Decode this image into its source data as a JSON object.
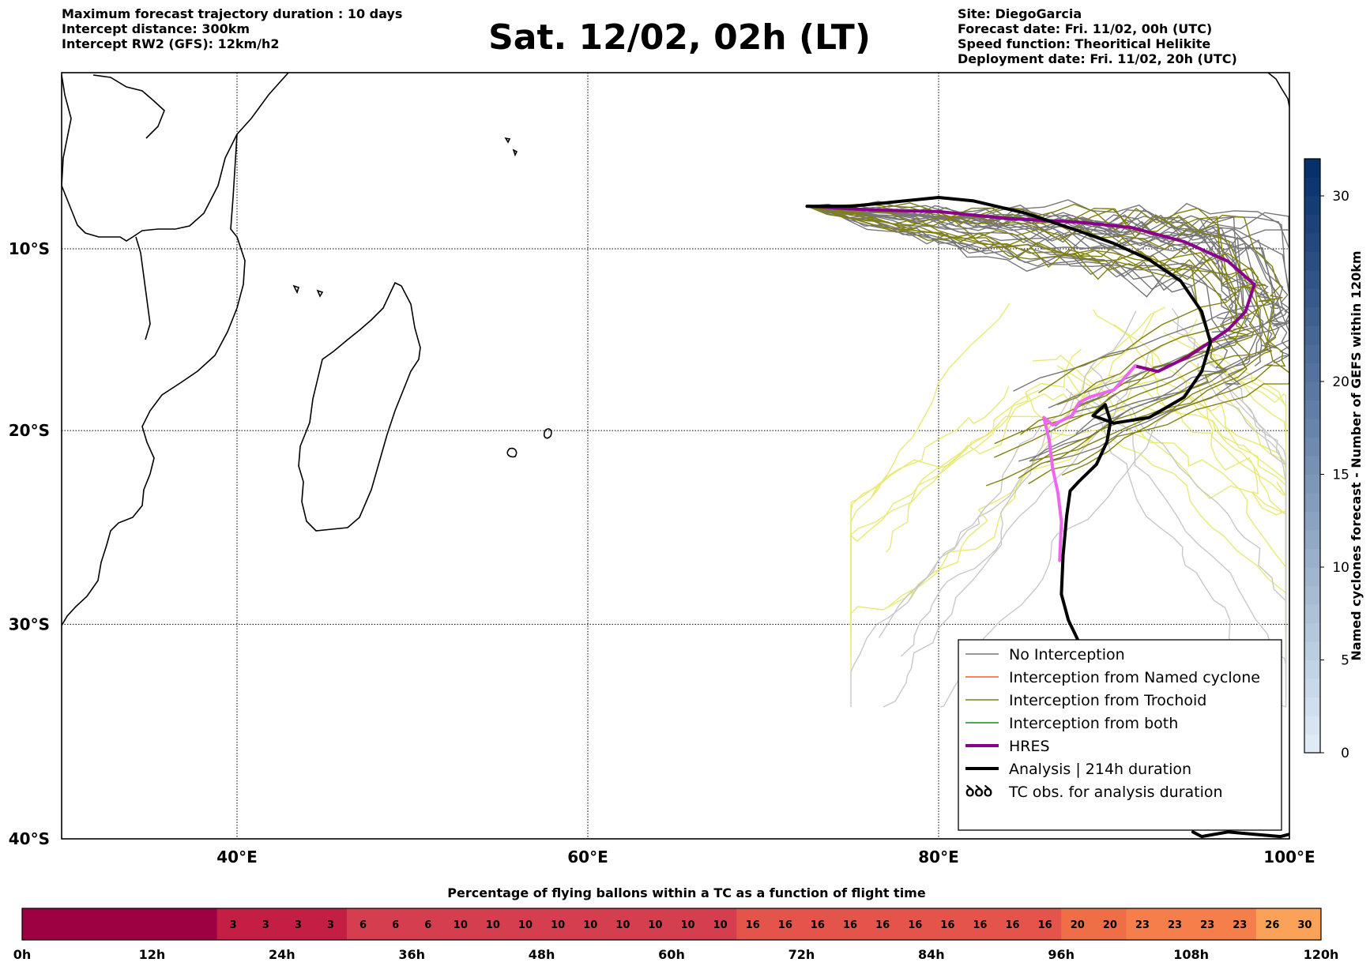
{
  "header": {
    "left": [
      "Maximum forecast trajectory duration : 10 days",
      "Intercept distance: 300km",
      "Intercept RW2 (GFS):  12km/h2"
    ],
    "title": "Sat. 12/02, 02h (LT)",
    "right": [
      "Site: DiegoGarcia",
      "Forecast date: Fri. 11/02, 00h (UTC)",
      "Speed function: Theoritical Helikite",
      "Deployment date: Fri. 11/02, 20h (UTC)"
    ]
  },
  "chart_data": [
    {
      "type": "map-trajectories",
      "x_ticks": [
        "40°E",
        "60°E",
        "80°E",
        "100°E"
      ],
      "y_ticks": [
        "10°S",
        "20°S",
        "30°S",
        "40°S"
      ],
      "grid": true,
      "legend_position": "bottom-right",
      "legend": [
        {
          "label": "No Interception",
          "color": "#777777",
          "style": "line-thin"
        },
        {
          "label": "Interception from Named cyclone",
          "color": "#ff5a1f",
          "style": "line-thin"
        },
        {
          "label": "Interception from Trochoid",
          "color": "#808010",
          "style": "line-thin"
        },
        {
          "label": "Interception from both",
          "color": "#1a8a1a",
          "style": "line-thin"
        },
        {
          "label": "HRES",
          "color": "#8b008b",
          "style": "line-thick"
        },
        {
          "label": "Analysis | 214h duration",
          "color": "#000000",
          "style": "line-thick"
        },
        {
          "label": "TC obs. for analysis duration",
          "color": "#000000",
          "style": "cyclone-symbol"
        }
      ],
      "series": [
        {
          "name": "HRES",
          "color": "#8b008b",
          "points": [
            [
              72.5,
              -7.6
            ],
            [
              76,
              -7.8
            ],
            [
              80,
              -7.9
            ],
            [
              84,
              -8.3
            ],
            [
              88,
              -8.5
            ],
            [
              91,
              -8.8
            ],
            [
              94,
              -9.6
            ],
            [
              96.5,
              -10.7
            ],
            [
              98,
              -12.0
            ],
            [
              97.5,
              -13.5
            ],
            [
              96.5,
              -14.5
            ],
            [
              95.3,
              -15.3
            ],
            [
              94.2,
              -16.0
            ],
            [
              92.5,
              -16.8
            ],
            [
              91.2,
              -16.5
            ]
          ]
        },
        {
          "name": "HRES continuation",
          "color": "#ee66ee",
          "points": [
            [
              91.2,
              -16.5
            ],
            [
              90.0,
              -17.8
            ],
            [
              88.6,
              -18.2
            ],
            [
              88.0,
              -18.5
            ],
            [
              87.6,
              -19.2
            ],
            [
              86.5,
              -19.7
            ],
            [
              86.0,
              -19.3
            ],
            [
              86.3,
              -20.5
            ],
            [
              86.5,
              -22.0
            ],
            [
              86.8,
              -23.3
            ],
            [
              87.0,
              -24.8
            ],
            [
              86.9,
              -26.8
            ]
          ]
        },
        {
          "name": "Analysis | 214h duration",
          "color": "#000000",
          "points": [
            [
              72.5,
              -7.6
            ],
            [
              75,
              -7.6
            ],
            [
              77,
              -7.4
            ],
            [
              80,
              -7.1
            ],
            [
              82,
              -7.3
            ],
            [
              85,
              -8.0
            ],
            [
              88,
              -9.0
            ],
            [
              90,
              -9.7
            ],
            [
              92,
              -10.6
            ],
            [
              93.8,
              -11.8
            ],
            [
              95.0,
              -13.5
            ],
            [
              95.5,
              -15.2
            ],
            [
              95.0,
              -16.8
            ],
            [
              94.0,
              -18.2
            ],
            [
              92.0,
              -19.3
            ],
            [
              90.0,
              -19.6
            ],
            [
              88.8,
              -19.2
            ],
            [
              89.5,
              -18.6
            ],
            [
              89.8,
              -19.5
            ],
            [
              89.6,
              -20.6
            ],
            [
              89.0,
              -21.8
            ],
            [
              88.0,
              -22.7
            ],
            [
              87.5,
              -23.2
            ],
            [
              87.3,
              -24.5
            ],
            [
              87.1,
              -26.5
            ],
            [
              87.0,
              -28.5
            ],
            [
              87.4,
              -29.8
            ],
            [
              87.9,
              -30.7
            ],
            [
              88.4,
              -31.8
            ],
            [
              88.6,
              -33.0
            ]
          ]
        },
        {
          "name": "Analysis end",
          "color": "#000000",
          "points": [
            [
              94.5,
              -39.7
            ],
            [
              95.0,
              -39.9
            ],
            [
              96.5,
              -39.7
            ],
            [
              98,
              -39.8
            ],
            [
              99.5,
              -39.9
            ],
            [
              100,
              -39.8
            ]
          ]
        }
      ]
    },
    {
      "type": "colorbar",
      "title": "Named cyclones forecast - Number of GEFS within 120km",
      "ticks": [
        0,
        5,
        10,
        15,
        20,
        30
      ],
      "range": [
        0,
        32
      ],
      "color_low": "#deebf7",
      "color_high": "#08306b"
    },
    {
      "type": "bar",
      "title": "Percentage of flying ballons within a TC as a function of flight time",
      "x_ticks": [
        "0h",
        "12h",
        "24h",
        "36h",
        "48h",
        "60h",
        "72h",
        "84h",
        "96h",
        "108h",
        "120h"
      ],
      "values": [
        0,
        0,
        0,
        0,
        0,
        0,
        3,
        3,
        3,
        3,
        6,
        6,
        6,
        10,
        10,
        10,
        10,
        10,
        10,
        10,
        10,
        10,
        16,
        16,
        16,
        16,
        16,
        16,
        16,
        16,
        16,
        16,
        20,
        20,
        23,
        23,
        23,
        23,
        26,
        30
      ],
      "scale": {
        "colors": [
          "#9e0142",
          "#c41e45",
          "#d53e4f",
          "#e4544a",
          "#ef6e46",
          "#f67e4b",
          "#fba158"
        ]
      }
    }
  ]
}
